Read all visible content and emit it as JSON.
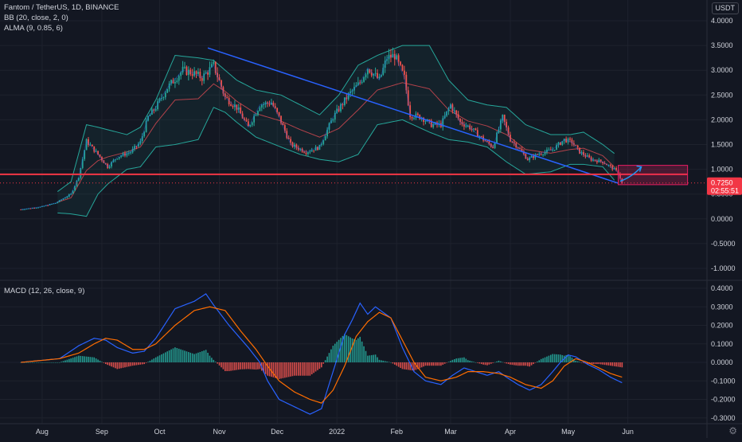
{
  "header": {
    "symbol_line": "Fantom / TetherUS, 1D, BINANCE",
    "bb_line": "BB (20, close, 2, 0)",
    "alma_line": "ALMA (9, 0.85, 6)",
    "currency_badge": "USDT"
  },
  "price_badge": {
    "price": "0.7250",
    "countdown": "02:55:51",
    "color": "#f23645"
  },
  "macd_legend": "MACD (12, 26, close, 9)",
  "settings_icon": "gear-icon",
  "colors": {
    "up": "#26a69a",
    "down": "#ef5350",
    "bb_band": "#26a69a",
    "trendline": "#2962ff",
    "support": "#f23645",
    "macd": "#2962ff",
    "signal": "#ff6d00"
  },
  "chart_data": [
    {
      "type": "candlestick",
      "title": "Fantom / TetherUS, 1D, BINANCE",
      "x_tick_labels": [
        "Aug",
        "Sep",
        "Oct",
        "Nov",
        "Dec",
        "2022",
        "Feb",
        "Mar",
        "Apr",
        "May",
        "Jun"
      ],
      "y_tick_labels": [
        "4.0000",
        "3.5000",
        "3.0000",
        "2.5000",
        "2.0000",
        "1.5000",
        "1.0000",
        "0.5000",
        "0.0000",
        "-0.5000",
        "-1.0000"
      ],
      "ylim": [
        -1.25,
        4.2
      ],
      "x_domain_days": [
        0,
        338
      ],
      "close_anchors": [
        [
          0,
          0.19
        ],
        [
          10,
          0.24
        ],
        [
          18,
          0.32
        ],
        [
          26,
          0.5
        ],
        [
          30,
          0.85
        ],
        [
          34,
          1.57
        ],
        [
          40,
          1.3
        ],
        [
          45,
          1.05
        ],
        [
          50,
          1.25
        ],
        [
          57,
          1.35
        ],
        [
          62,
          1.55
        ],
        [
          66,
          2.05
        ],
        [
          70,
          2.25
        ],
        [
          76,
          2.65
        ],
        [
          84,
          3.0
        ],
        [
          89,
          2.95
        ],
        [
          94,
          2.85
        ],
        [
          100,
          3.1
        ],
        [
          106,
          2.45
        ],
        [
          112,
          2.25
        ],
        [
          118,
          1.85
        ],
        [
          124,
          2.3
        ],
        [
          130,
          2.35
        ],
        [
          134,
          2.05
        ],
        [
          140,
          1.5
        ],
        [
          148,
          1.35
        ],
        [
          155,
          1.45
        ],
        [
          162,
          2.05
        ],
        [
          170,
          2.5
        ],
        [
          176,
          2.75
        ],
        [
          180,
          3.05
        ],
        [
          186,
          2.8
        ],
        [
          190,
          3.25
        ],
        [
          194,
          3.3
        ],
        [
          199,
          2.85
        ],
        [
          202,
          2.1
        ],
        [
          208,
          2.05
        ],
        [
          213,
          1.9
        ],
        [
          218,
          1.9
        ],
        [
          223,
          2.3
        ],
        [
          228,
          1.95
        ],
        [
          233,
          1.85
        ],
        [
          240,
          1.6
        ],
        [
          245,
          1.45
        ],
        [
          250,
          2.05
        ],
        [
          254,
          1.6
        ],
        [
          258,
          1.45
        ],
        [
          263,
          1.2
        ],
        [
          268,
          1.3
        ],
        [
          276,
          1.4
        ],
        [
          282,
          1.6
        ],
        [
          286,
          1.55
        ],
        [
          290,
          1.35
        ],
        [
          296,
          1.2
        ],
        [
          302,
          1.15
        ],
        [
          308,
          1.0
        ],
        [
          310,
          0.93
        ],
        [
          312,
          0.725
        ]
      ],
      "bb_upper_anchors": [
        [
          19,
          0.55
        ],
        [
          26,
          0.75
        ],
        [
          34,
          1.9
        ],
        [
          40,
          1.85
        ],
        [
          45,
          1.8
        ],
        [
          55,
          1.7
        ],
        [
          62,
          1.85
        ],
        [
          70,
          2.4
        ],
        [
          80,
          3.3
        ],
        [
          92,
          3.25
        ],
        [
          100,
          3.2
        ],
        [
          106,
          3.0
        ],
        [
          112,
          2.8
        ],
        [
          122,
          2.6
        ],
        [
          135,
          2.5
        ],
        [
          145,
          2.3
        ],
        [
          155,
          2.1
        ],
        [
          165,
          2.5
        ],
        [
          175,
          3.1
        ],
        [
          185,
          3.3
        ],
        [
          198,
          3.5
        ],
        [
          212,
          3.5
        ],
        [
          222,
          2.8
        ],
        [
          232,
          2.4
        ],
        [
          242,
          2.3
        ],
        [
          252,
          2.25
        ],
        [
          262,
          1.9
        ],
        [
          275,
          1.7
        ],
        [
          285,
          1.7
        ],
        [
          292,
          1.75
        ],
        [
          302,
          1.5
        ],
        [
          308,
          1.32
        ]
      ],
      "bb_lower_anchors": [
        [
          19,
          0.12
        ],
        [
          26,
          0.1
        ],
        [
          34,
          0.05
        ],
        [
          40,
          0.5
        ],
        [
          45,
          0.7
        ],
        [
          55,
          1.0
        ],
        [
          62,
          1.05
        ],
        [
          70,
          1.45
        ],
        [
          80,
          1.5
        ],
        [
          92,
          1.6
        ],
        [
          100,
          2.25
        ],
        [
          106,
          2.15
        ],
        [
          112,
          1.95
        ],
        [
          122,
          1.65
        ],
        [
          135,
          1.45
        ],
        [
          145,
          1.3
        ],
        [
          155,
          1.2
        ],
        [
          165,
          1.15
        ],
        [
          175,
          1.3
        ],
        [
          185,
          1.9
        ],
        [
          198,
          2.0
        ],
        [
          212,
          1.75
        ],
        [
          222,
          1.6
        ],
        [
          232,
          1.55
        ],
        [
          242,
          1.45
        ],
        [
          252,
          1.15
        ],
        [
          262,
          0.9
        ],
        [
          275,
          0.95
        ],
        [
          285,
          1.1
        ],
        [
          292,
          1.1
        ],
        [
          302,
          1.05
        ],
        [
          308,
          0.78
        ]
      ],
      "trendline": {
        "from": [
          97,
          3.45
        ],
        "to": [
          310,
          0.72
        ]
      },
      "support_level": 0.9,
      "target_box": {
        "x_days": [
          310,
          346
        ],
        "y": [
          0.69,
          1.08
        ]
      },
      "target_arrow": {
        "from": [
          311,
          0.76
        ],
        "to": [
          322,
          1.05
        ]
      },
      "last_price": 0.725
    },
    {
      "type": "macd",
      "title": "MACD (12, 26, close, 9)",
      "y_tick_labels": [
        "0.4000",
        "0.3000",
        "0.2000",
        "0.1000",
        "0.0000",
        "-0.1000",
        "-0.2000",
        "-0.3000"
      ],
      "ylim": [
        -0.33,
        0.43
      ],
      "macd_anchors": [
        [
          0,
          0.0
        ],
        [
          20,
          0.02
        ],
        [
          30,
          0.09
        ],
        [
          38,
          0.13
        ],
        [
          44,
          0.12
        ],
        [
          50,
          0.08
        ],
        [
          58,
          0.05
        ],
        [
          64,
          0.06
        ],
        [
          70,
          0.13
        ],
        [
          80,
          0.29
        ],
        [
          90,
          0.33
        ],
        [
          96,
          0.37
        ],
        [
          100,
          0.31
        ],
        [
          108,
          0.2
        ],
        [
          118,
          0.08
        ],
        [
          124,
          0.0
        ],
        [
          128,
          -0.1
        ],
        [
          134,
          -0.2
        ],
        [
          140,
          -0.23
        ],
        [
          150,
          -0.28
        ],
        [
          156,
          -0.25
        ],
        [
          162,
          -0.05
        ],
        [
          168,
          0.15
        ],
        [
          172,
          0.23
        ],
        [
          176,
          0.32
        ],
        [
          180,
          0.26
        ],
        [
          184,
          0.3
        ],
        [
          192,
          0.24
        ],
        [
          198,
          0.08
        ],
        [
          204,
          -0.05
        ],
        [
          210,
          -0.1
        ],
        [
          218,
          -0.12
        ],
        [
          224,
          -0.07
        ],
        [
          230,
          -0.03
        ],
        [
          236,
          -0.05
        ],
        [
          242,
          -0.07
        ],
        [
          248,
          -0.05
        ],
        [
          252,
          -0.08
        ],
        [
          258,
          -0.12
        ],
        [
          264,
          -0.15
        ],
        [
          270,
          -0.12
        ],
        [
          276,
          -0.05
        ],
        [
          280,
          0.0
        ],
        [
          284,
          0.04
        ],
        [
          288,
          0.03
        ],
        [
          294,
          -0.01
        ],
        [
          300,
          -0.04
        ],
        [
          306,
          -0.08
        ],
        [
          312,
          -0.11
        ]
      ],
      "signal_anchors": [
        [
          0,
          0.0
        ],
        [
          20,
          0.02
        ],
        [
          30,
          0.05
        ],
        [
          38,
          0.1
        ],
        [
          44,
          0.13
        ],
        [
          50,
          0.12
        ],
        [
          58,
          0.07
        ],
        [
          64,
          0.07
        ],
        [
          70,
          0.1
        ],
        [
          80,
          0.2
        ],
        [
          90,
          0.28
        ],
        [
          98,
          0.3
        ],
        [
          106,
          0.28
        ],
        [
          114,
          0.17
        ],
        [
          122,
          0.07
        ],
        [
          128,
          -0.02
        ],
        [
          134,
          -0.1
        ],
        [
          142,
          -0.16
        ],
        [
          150,
          -0.2
        ],
        [
          156,
          -0.22
        ],
        [
          162,
          -0.15
        ],
        [
          168,
          -0.02
        ],
        [
          174,
          0.14
        ],
        [
          180,
          0.22
        ],
        [
          186,
          0.27
        ],
        [
          192,
          0.24
        ],
        [
          198,
          0.12
        ],
        [
          204,
          0.0
        ],
        [
          210,
          -0.08
        ],
        [
          218,
          -0.1
        ],
        [
          226,
          -0.08
        ],
        [
          232,
          -0.05
        ],
        [
          240,
          -0.05
        ],
        [
          248,
          -0.06
        ],
        [
          254,
          -0.08
        ],
        [
          262,
          -0.12
        ],
        [
          270,
          -0.14
        ],
        [
          276,
          -0.1
        ],
        [
          282,
          -0.02
        ],
        [
          288,
          0.02
        ],
        [
          294,
          0.0
        ],
        [
          300,
          -0.03
        ],
        [
          306,
          -0.06
        ],
        [
          312,
          -0.08
        ]
      ]
    }
  ]
}
